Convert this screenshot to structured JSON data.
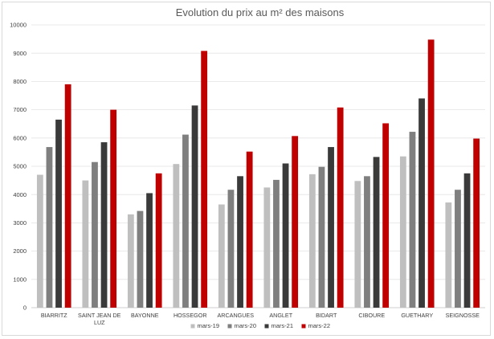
{
  "chart_data": {
    "type": "bar",
    "title": "Evolution du prix au m² des maisons",
    "xlabel": "",
    "ylabel": "",
    "ylim": [
      0,
      10000
    ],
    "yticks": [
      0,
      1000,
      2000,
      3000,
      4000,
      5000,
      6000,
      7000,
      8000,
      9000,
      10000
    ],
    "grid": true,
    "legend_position": "bottom",
    "categories": [
      [
        "BIARRITZ"
      ],
      [
        "SAINT JEAN DE",
        "LUZ"
      ],
      [
        "BAYONNE"
      ],
      [
        "HOSSEGOR"
      ],
      [
        "ARCANGUES"
      ],
      [
        "ANGLET"
      ],
      [
        "BIDART"
      ],
      [
        "CIBOURE"
      ],
      [
        "GUETHARY"
      ],
      [
        "SEIGNOSSE"
      ]
    ],
    "series": [
      {
        "name": "mars-19",
        "color": "#bfbfbf",
        "values": [
          4700,
          4500,
          3300,
          5080,
          3650,
          4250,
          4720,
          4480,
          5350,
          3720
        ]
      },
      {
        "name": "mars-20",
        "color": "#7f7f7f",
        "values": [
          5680,
          5150,
          3420,
          6120,
          4170,
          4520,
          4980,
          4650,
          6220,
          4170
        ]
      },
      {
        "name": "mars-21",
        "color": "#3a3a3a",
        "values": [
          6650,
          5850,
          4050,
          7150,
          4650,
          5100,
          5680,
          5330,
          7400,
          4750
        ]
      },
      {
        "name": "mars-22",
        "color": "#c00000",
        "values": [
          7900,
          7000,
          4750,
          9080,
          5520,
          6070,
          7080,
          6520,
          9480,
          5980
        ]
      }
    ]
  }
}
